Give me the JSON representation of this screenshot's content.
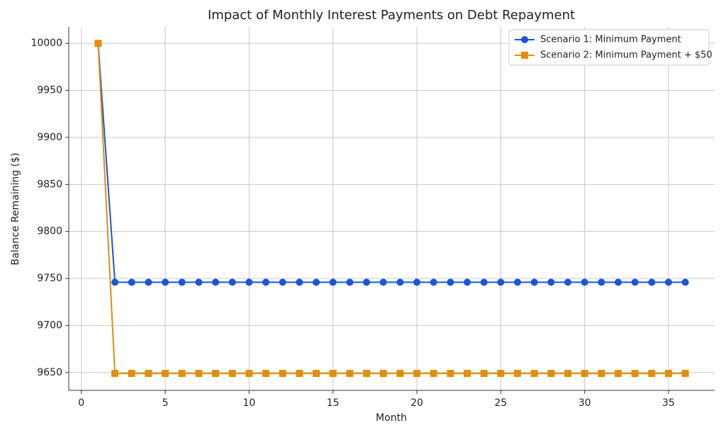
{
  "chart_data": {
    "type": "line",
    "title": "Impact of Monthly Interest Payments on Debt Repayment",
    "x_label": "Month",
    "y_label": "Balance Remaining ($)",
    "x": [
      1,
      2,
      3,
      4,
      5,
      6,
      7,
      8,
      9,
      10,
      11,
      12,
      13,
      14,
      15,
      16,
      17,
      18,
      19,
      20,
      21,
      22,
      23,
      24,
      25,
      26,
      27,
      28,
      29,
      30,
      31,
      32,
      33,
      34,
      35,
      36
    ],
    "series": [
      {
        "name": "Scenario 1: Minimum Payment",
        "color": "#1a56d6",
        "marker": "circle",
        "values": [
          10000,
          9746,
          9746,
          9746,
          9746,
          9746,
          9746,
          9746,
          9746,
          9746,
          9746,
          9746,
          9746,
          9746,
          9746,
          9746,
          9746,
          9746,
          9746,
          9746,
          9746,
          9746,
          9746,
          9746,
          9746,
          9746,
          9746,
          9746,
          9746,
          9746,
          9746,
          9746,
          9746,
          9746,
          9746,
          9746
        ]
      },
      {
        "name": "Scenario 2: Minimum Payment + $50",
        "color": "#e08e0b",
        "marker": "square",
        "values": [
          10000,
          9649,
          9649,
          9649,
          9649,
          9649,
          9649,
          9649,
          9649,
          9649,
          9649,
          9649,
          9649,
          9649,
          9649,
          9649,
          9649,
          9649,
          9649,
          9649,
          9649,
          9649,
          9649,
          9649,
          9649,
          9649,
          9649,
          9649,
          9649,
          9649,
          9649,
          9649,
          9649,
          9649,
          9649,
          9649
        ]
      }
    ],
    "xlim": [
      -0.75,
      37.75
    ],
    "xticks": [
      0,
      5,
      10,
      15,
      20,
      25,
      30,
      35
    ],
    "ylim": [
      9631,
      10017.5
    ],
    "yticks": [
      9650,
      9700,
      9750,
      9800,
      9850,
      9900,
      9950,
      10000
    ],
    "grid": true,
    "legend": "upper right"
  }
}
